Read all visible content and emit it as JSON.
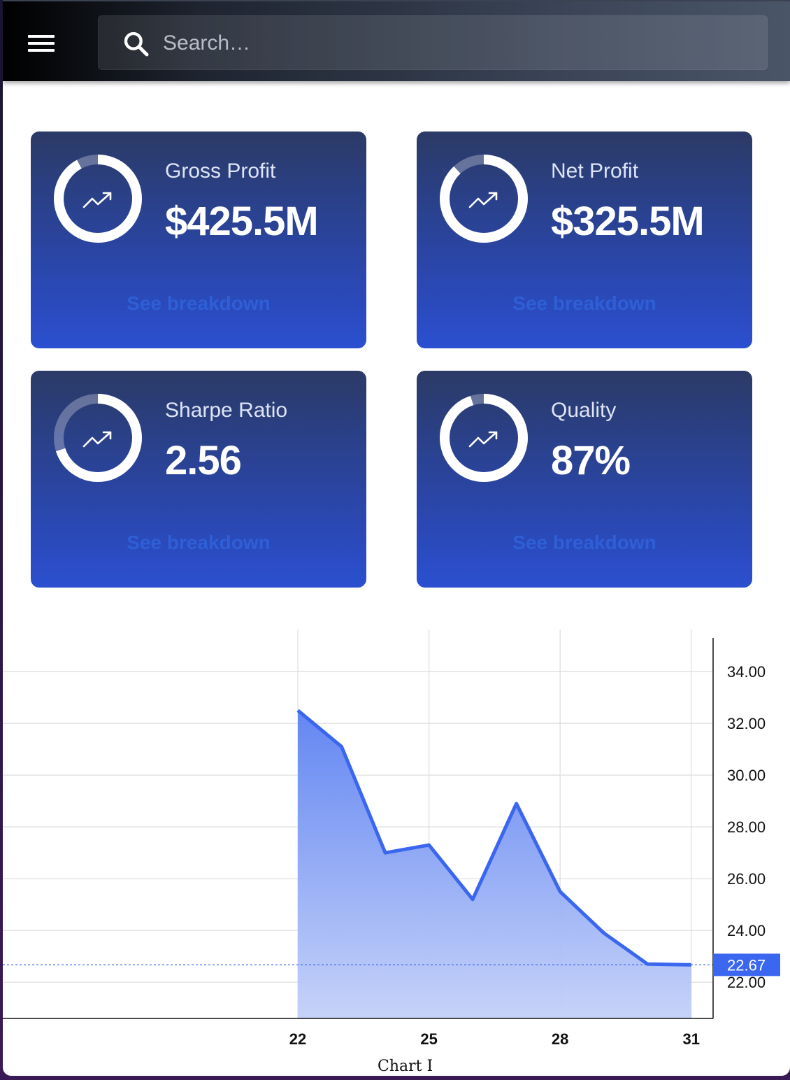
{
  "header": {
    "menu_icon": "hamburger-menu-icon",
    "search": {
      "placeholder": "Search…",
      "value": "",
      "icon": "search-icon"
    }
  },
  "cards": [
    {
      "label": "Gross Profit",
      "value": "$425.5M",
      "link": "See breakdown",
      "progress": 0.92,
      "icon": "trending-up-icon"
    },
    {
      "label": "Net Profit",
      "value": "$325.5M",
      "link": "See breakdown",
      "progress": 0.88,
      "icon": "trending-up-icon"
    },
    {
      "label": "Sharpe Ratio",
      "value": "2.56",
      "link": "See breakdown",
      "progress": 0.7,
      "icon": "trending-up-icon"
    },
    {
      "label": "Quality",
      "value": "87%",
      "link": "See breakdown",
      "progress": 0.95,
      "icon": "trending-up-icon"
    }
  ],
  "colors": {
    "line": "#3a66f0",
    "area_top": "#5b80f2",
    "area_bottom": "#c3d0f8",
    "price_tag": "#3a66f0",
    "link": "#2f5fd6"
  },
  "chart_data": {
    "type": "area",
    "x": [
      22,
      23,
      24,
      25,
      26,
      27,
      28,
      29,
      30,
      31
    ],
    "values": [
      32.5,
      31.1,
      27.0,
      27.3,
      25.2,
      28.9,
      25.5,
      23.9,
      22.7,
      22.67
    ],
    "x_ticks": [
      "22",
      "25",
      "28",
      "31"
    ],
    "x_tick_values": [
      22,
      25,
      28,
      31
    ],
    "y_ticks": [
      "34.00",
      "32.00",
      "30.00",
      "28.00",
      "26.00",
      "24.00",
      "22.00"
    ],
    "y_tick_values": [
      34,
      32,
      30,
      28,
      26,
      24,
      22
    ],
    "xlim": [
      15.25,
      31.5
    ],
    "ylim": [
      20.6,
      35.3
    ],
    "last_value_label": "22.67",
    "last_value": 22.67,
    "caption": "Chart I",
    "grid": true,
    "y_axis_position": "right"
  }
}
